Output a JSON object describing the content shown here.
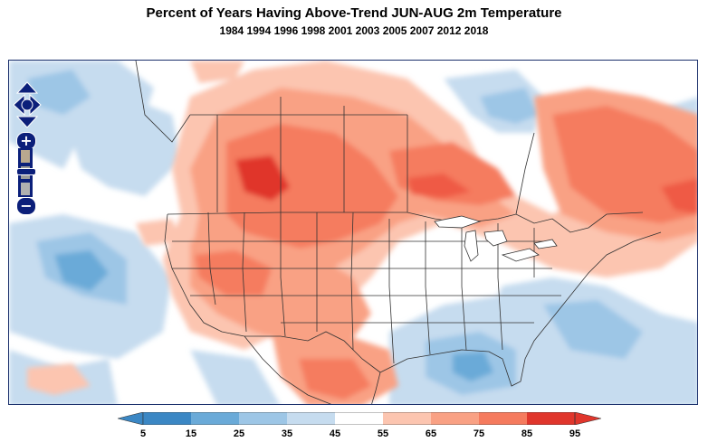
{
  "title": "Percent of Years Having Above-Trend JUN-AUG 2m Temperature",
  "subtitle": "1984 1994 1996 1998 2001 2003 2005 2007 2012 2018",
  "legend": {
    "labels": [
      "5",
      "15",
      "25",
      "35",
      "45",
      "55",
      "65",
      "75",
      "85",
      "95"
    ],
    "colors": [
      "#3b87c4",
      "#6aaad8",
      "#9dc6e6",
      "#c6dcef",
      "#ffffff",
      "#fcc5b0",
      "#f9a184",
      "#f57b5e",
      "#ef5a45",
      "#e0362c"
    ]
  },
  "controls": {
    "pan_icon": "pan-arrows-icon",
    "zoom_in_icon": "plus-icon",
    "zoom_out_icon": "minus-icon",
    "zoom_in_label": "+",
    "zoom_out_label": "−"
  }
}
